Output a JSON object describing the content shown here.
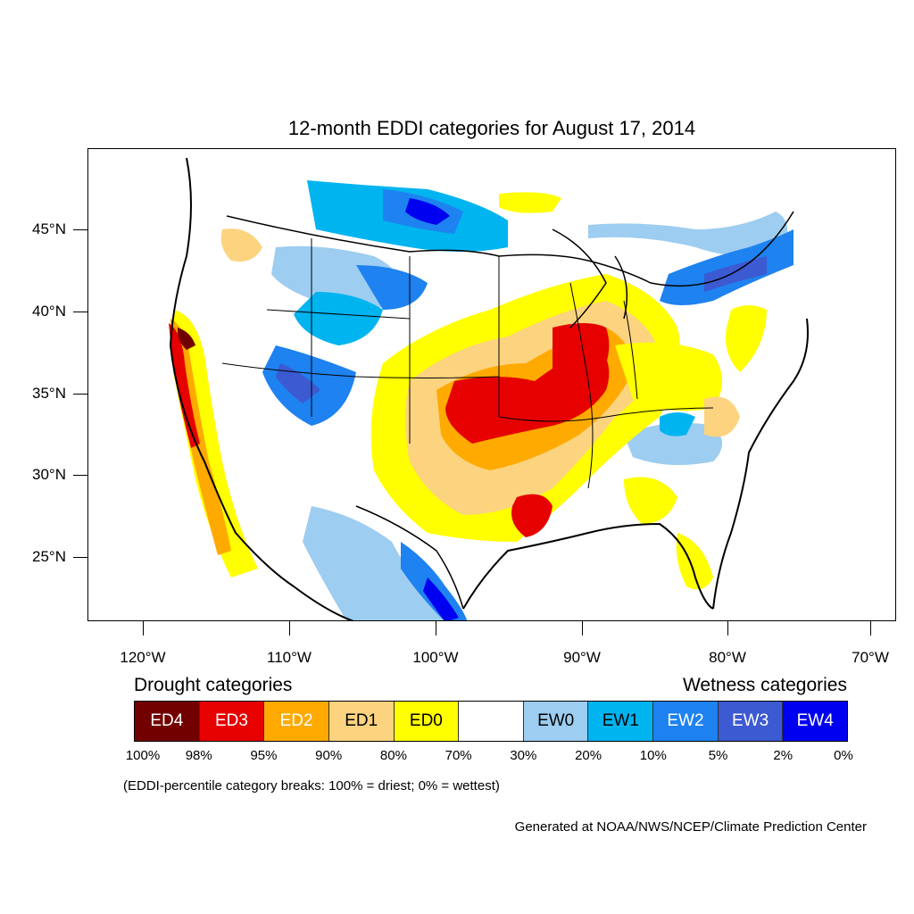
{
  "title": "12-month EDDI categories for August 17, 2014",
  "axes": {
    "lat_labels": [
      "45°N",
      "40°N",
      "35°N",
      "30°N",
      "25°N"
    ],
    "lon_labels": [
      "120°W",
      "110°W",
      "100°W",
      "90°W",
      "80°W",
      "70°W"
    ]
  },
  "legend": {
    "drought_heading": "Drought categories",
    "wetness_heading": "Wetness categories",
    "categories": [
      {
        "label": "ED4",
        "color": "#730000",
        "text_color": "#ffffff"
      },
      {
        "label": "ED3",
        "color": "#e60000",
        "text_color": "#ffffff"
      },
      {
        "label": "ED2",
        "color": "#ffaa00",
        "text_color": "#ffffff"
      },
      {
        "label": "ED1",
        "color": "#fcd37f",
        "text_color": "#000000"
      },
      {
        "label": "ED0",
        "color": "#ffff00",
        "text_color": "#000000"
      },
      {
        "label": "",
        "color": "#ffffff",
        "text_color": "#000000"
      },
      {
        "label": "EW0",
        "color": "#9dcdf0",
        "text_color": "#000000"
      },
      {
        "label": "EW1",
        "color": "#00b4f0",
        "text_color": "#000000"
      },
      {
        "label": "EW2",
        "color": "#1e82f0",
        "text_color": "#ffffff"
      },
      {
        "label": "EW3",
        "color": "#3c5ad2",
        "text_color": "#ffffff"
      },
      {
        "label": "EW4",
        "color": "#0000f0",
        "text_color": "#ffffff"
      }
    ],
    "breaks": [
      "100%",
      "98%",
      "95%",
      "90%",
      "80%",
      "70%",
      "30%",
      "20%",
      "10%",
      "5%",
      "2%",
      "0%"
    ]
  },
  "note": "(EDDI-percentile category breaks: 100% = driest; 0% = wettest)",
  "credit": "Generated at NOAA/NWS/NCEP/Climate Prediction Center"
}
